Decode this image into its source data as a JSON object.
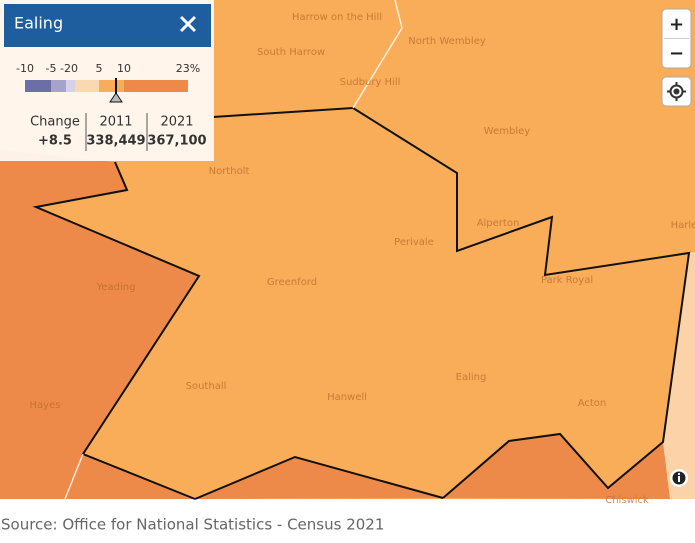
{
  "panel": {
    "title": "Ealing",
    "legend": {
      "labels": [
        "-10",
        "-5",
        "-20",
        "5",
        "10",
        "23%"
      ]
    },
    "table": {
      "headers": [
        "Change",
        "2011",
        "2021"
      ],
      "values": [
        "+8.5",
        "338,449",
        "367,100"
      ]
    }
  },
  "places": [
    "Harrow on the Hill",
    "South Harrow",
    "North Wembley",
    "Sudbury Hill",
    "Wembley",
    "Northolt",
    "Alperton",
    "Perivale",
    "Park Royal",
    "Harle",
    "Yeading",
    "Greenford",
    "Southall",
    "Hanwell",
    "Ealing",
    "Acton",
    "Hayes",
    "Chiswick"
  ],
  "controls": {
    "zoom_in": "+",
    "zoom_out": "−"
  },
  "source": "Source: Office for National Statistics - Census 2021"
}
